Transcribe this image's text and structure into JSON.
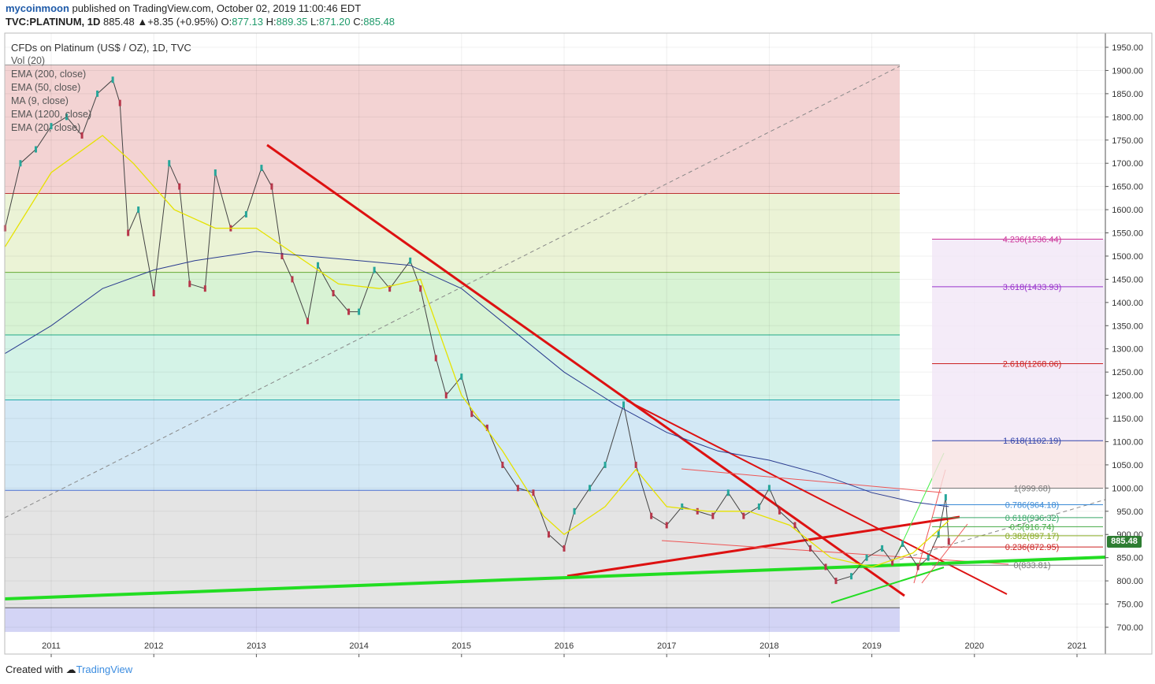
{
  "header": {
    "author": "mycoinmoon",
    "published_text": " published on TradingView.com, October 02, 2019 11:00:46 EDT",
    "symbol": "TVC:PLATINUM, 1D",
    "last": "885.48",
    "change": "+8.35 (+0.95%)",
    "o_label": "O:",
    "o_value": "877.13",
    "h_label": "H:",
    "h_value": "889.35",
    "l_label": "L:",
    "l_value": "871.20",
    "c_label": "C:",
    "c_value": "885.48"
  },
  "legend": {
    "title": "CFDs on Platinum (US$ / OZ), 1D, TVC",
    "items": [
      "Vol (20)",
      "EMA (200, close)",
      "EMA (50, close)",
      "MA (9, close)",
      "EMA (1200, close)",
      "EMA (20, close)"
    ]
  },
  "footer": {
    "created_with": "Created with",
    "brand": "TradingView"
  },
  "price_tag": "885.48",
  "colors": {
    "up": "#26a69a",
    "down": "#b7364a",
    "ema200": "#2a3b8f",
    "ema50": "#e8e600",
    "green_line": "#22dd22",
    "red_line": "#dd1111",
    "bg": "#ffffff"
  },
  "chart_data": {
    "type": "line",
    "title": "CFDs on Platinum (US$ / OZ), 1D, TVC",
    "xlabel": "",
    "ylabel": "",
    "ylim": [
      690,
      1970
    ],
    "xlim": [
      2010.55,
      2021.35
    ],
    "x_ticks": [
      "2011",
      "2012",
      "2013",
      "2014",
      "2015",
      "2016",
      "2017",
      "2018",
      "2019",
      "2020",
      "2021"
    ],
    "y_ticks": [
      "1950.00",
      "1900.00",
      "1850.00",
      "1800.00",
      "1750.00",
      "1700.00",
      "1650.00",
      "1600.00",
      "1550.00",
      "1500.00",
      "1450.00",
      "1400.00",
      "1350.00",
      "1300.00",
      "1250.00",
      "1200.00",
      "1150.00",
      "1100.00",
      "1050.00",
      "1000.00",
      "950.00",
      "900.00",
      "850.00",
      "800.00",
      "750.00",
      "700.00"
    ],
    "grid": true,
    "series": [
      {
        "name": "",
        "x": [
          2010.55,
          2010.7,
          2010.85,
          2011.0,
          2011.15,
          2011.3,
          2011.45,
          2011.6,
          2011.67,
          2011.75,
          2011.85,
          2012.0,
          2012.15,
          2012.25,
          2012.35,
          2012.5,
          2012.6,
          2012.75,
          2012.9,
          2013.05,
          2013.15,
          2013.25,
          2013.35,
          2013.5,
          2013.6,
          2013.75,
          2013.9,
          2014.0,
          2014.15,
          2014.3,
          2014.5,
          2014.6,
          2014.75,
          2014.85,
          2015.0,
          2015.1,
          2015.25,
          2015.4,
          2015.55,
          2015.7,
          2015.85,
          2016.0,
          2016.1,
          2016.25,
          2016.4,
          2016.58,
          2016.7,
          2016.85,
          2017.0,
          2017.15,
          2017.3,
          2017.45,
          2017.6,
          2017.75,
          2017.9,
          2018.0,
          2018.1,
          2018.25,
          2018.4,
          2018.55,
          2018.65,
          2018.8,
          2018.95,
          2019.1,
          2019.2,
          2019.3,
          2019.45,
          2019.55,
          2019.65,
          2019.72,
          2019.75
        ],
        "values": [
          1560,
          1700,
          1730,
          1780,
          1800,
          1760,
          1850,
          1880,
          1830,
          1550,
          1600,
          1420,
          1700,
          1650,
          1440,
          1430,
          1680,
          1560,
          1590,
          1690,
          1650,
          1500,
          1450,
          1360,
          1480,
          1420,
          1380,
          1380,
          1470,
          1430,
          1490,
          1430,
          1280,
          1200,
          1240,
          1160,
          1130,
          1050,
          1000,
          990,
          900,
          870,
          950,
          1000,
          1050,
          1180,
          1050,
          940,
          920,
          960,
          950,
          940,
          990,
          940,
          960,
          1000,
          950,
          920,
          870,
          830,
          800,
          810,
          850,
          870,
          840,
          880,
          830,
          850,
          900,
          980,
          885
        ]
      },
      {
        "name": "",
        "x": [
          2010.55,
          2011.0,
          2011.5,
          2011.8,
          2012.2,
          2012.6,
          2013.0,
          2013.4,
          2013.8,
          2014.2,
          2014.6,
          2015.0,
          2015.4,
          2015.8,
          2016.0,
          2016.4,
          2016.7,
          2017.0,
          2017.4,
          2017.8,
          2018.2,
          2018.6,
          2019.0,
          2019.4,
          2019.75
        ],
        "values": [
          1520,
          1680,
          1760,
          1700,
          1600,
          1560,
          1560,
          1500,
          1440,
          1430,
          1450,
          1200,
          1080,
          940,
          900,
          960,
          1040,
          960,
          950,
          950,
          920,
          850,
          830,
          860,
          930
        ]
      },
      {
        "name": "",
        "x": [
          2010.55,
          2011.0,
          2011.5,
          2012.0,
          2012.4,
          2013.0,
          2013.5,
          2014.0,
          2014.5,
          2015.0,
          2015.5,
          2016.0,
          2016.5,
          2017.0,
          2017.5,
          2018.0,
          2018.5,
          2019.0,
          2019.4,
          2019.75
        ],
        "values": [
          1290,
          1350,
          1430,
          1470,
          1490,
          1510,
          1500,
          1490,
          1480,
          1430,
          1340,
          1250,
          1180,
          1120,
          1080,
          1060,
          1030,
          990,
          970,
          960
        ]
      }
    ],
    "fib_retracement_levels": [
      "1(999.68)",
      "0.786(964.18)",
      "0.618(936.32)",
      "0.5(916.74)",
      "0.382(897.17)",
      "0.236(872.95)",
      "0(833.81)"
    ],
    "fib_extension_levels": [
      "4.236(1536.44)",
      "3.618(1433.93)",
      "2.618(1268.06)",
      "1.618(1102.19)"
    ]
  }
}
